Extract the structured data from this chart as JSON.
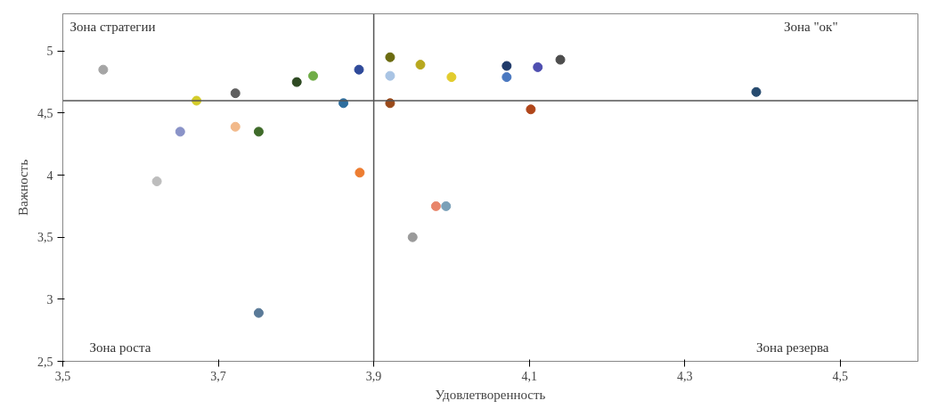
{
  "chart_data": {
    "type": "scatter",
    "xlabel": "Удовлетворенность",
    "ylabel": "Важность",
    "x": [
      3.552,
      3.672,
      3.722,
      3.801,
      3.822,
      3.881,
      3.861,
      3.651,
      3.722,
      3.752,
      3.621,
      3.882,
      3.752,
      3.921,
      3.921,
      3.96,
      4.0,
      4.071,
      4.071,
      4.111,
      4.14,
      3.921,
      4.102,
      3.98,
      3.993,
      3.95,
      4.392
    ],
    "values": [
      4.85,
      4.6,
      4.66,
      4.75,
      4.8,
      4.85,
      4.58,
      4.35,
      4.39,
      4.35,
      3.95,
      4.02,
      2.89,
      4.95,
      4.8,
      4.89,
      4.79,
      4.88,
      4.79,
      4.87,
      4.93,
      4.58,
      4.53,
      3.75,
      3.75,
      3.5,
      4.67
    ],
    "colors": [
      "#a5a5a5",
      "#d4cc2a",
      "#5f5f5f",
      "#2e4a22",
      "#70ad47",
      "#2f4a9a",
      "#2e6e9e",
      "#8a93c8",
      "#f2b98a",
      "#3f6b2a",
      "#bdbdbd",
      "#ed7d31",
      "#5a7a98",
      "#6b6b10",
      "#a9c4e4",
      "#b8a81e",
      "#e2cc2e",
      "#1f3a6a",
      "#4a78c0",
      "#4f4fb0",
      "#4d4d4d",
      "#9a4a1a",
      "#b0461a",
      "#e8856a",
      "#7aa0b8",
      "#9a9a9a",
      "#264a6e"
    ],
    "xlim": [
      3.5,
      4.6
    ],
    "ylim": [
      2.5,
      5.3
    ],
    "xticks": [
      {
        "value": 3.5,
        "label": "3,5"
      },
      {
        "value": 3.7,
        "label": "3,7"
      },
      {
        "value": 3.9,
        "label": "3,9"
      },
      {
        "value": 4.1,
        "label": "4,1"
      },
      {
        "value": 4.3,
        "label": "4,3"
      },
      {
        "value": 4.5,
        "label": "4,5"
      }
    ],
    "yticks": [
      {
        "value": 2.5,
        "label": "2,5"
      },
      {
        "value": 3,
        "label": "3"
      },
      {
        "value": 3.5,
        "label": "3,5"
      },
      {
        "value": 4,
        "label": "4"
      },
      {
        "value": 4.5,
        "label": "4,5"
      },
      {
        "value": 5,
        "label": "5"
      }
    ],
    "ref_lines": [
      {
        "axis": "x",
        "value": 3.9,
        "color": "#555555"
      },
      {
        "axis": "y",
        "value": 4.6,
        "color": "#555555"
      }
    ],
    "annotations": [
      "Зона стратегии",
      "Зона \"ок\"",
      "Зона роста",
      "Зона резерва"
    ],
    "marker": "circle",
    "grid": false
  }
}
